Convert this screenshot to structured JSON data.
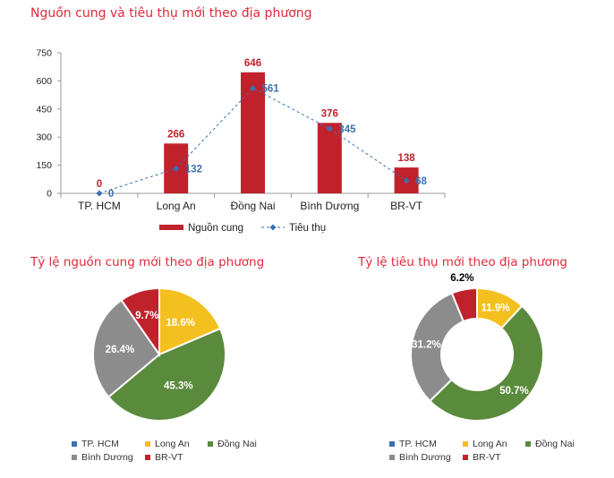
{
  "chart_data": [
    {
      "type": "bar",
      "title": "Nguồn cung và tiêu thụ mới theo địa phương",
      "categories": [
        "TP. HCM",
        "Long An",
        "Đồng Nai",
        "Bình Dương",
        "BR-VT"
      ],
      "ylim": [
        0,
        750
      ],
      "yticks": [
        0,
        150,
        300,
        450,
        600,
        750
      ],
      "grid": false,
      "legend_position": "bottom",
      "series": [
        {
          "name": "Nguồn cung",
          "type": "bar",
          "color": "#c0222c",
          "values": [
            0,
            266,
            646,
            376,
            138
          ]
        },
        {
          "name": "Tiêu thụ",
          "type": "line",
          "color": "#3a6fb0",
          "style": "dashed-diamond",
          "values": [
            0,
            132,
            561,
            345,
            68
          ]
        }
      ]
    },
    {
      "type": "pie",
      "title": "Tỷ lệ nguồn cung mới theo địa phương",
      "legend_position": "bottom",
      "slices": [
        {
          "label": "TP. HCM",
          "value": 0,
          "color": "#3a6fb0",
          "display": ""
        },
        {
          "label": "Long An",
          "value": 18.6,
          "color": "#f4c020",
          "display": "18.6%"
        },
        {
          "label": "Đồng Nai",
          "value": 45.3,
          "color": "#5a8a3c",
          "display": "45.3%"
        },
        {
          "label": "Bình Dương",
          "value": 26.4,
          "color": "#8c8c8c",
          "display": "26.4%"
        },
        {
          "label": "BR-VT",
          "value": 9.7,
          "color": "#c0222c",
          "display": "9.7%"
        }
      ]
    },
    {
      "type": "pie",
      "variant": "donut",
      "title": "Tỷ lệ tiêu thụ mới theo địa phương",
      "legend_position": "bottom",
      "slices": [
        {
          "label": "TP. HCM",
          "value": 0,
          "color": "#3a6fb0",
          "display": ""
        },
        {
          "label": "Long An",
          "value": 11.9,
          "color": "#f4c020",
          "display": "11.9%"
        },
        {
          "label": "Đồng Nai",
          "value": 50.7,
          "color": "#5a8a3c",
          "display": "50.7%"
        },
        {
          "label": "Bình Dương",
          "value": 31.2,
          "color": "#8c8c8c",
          "display": "31.2%"
        },
        {
          "label": "BR-VT",
          "value": 6.2,
          "color": "#c0222c",
          "display": "6.2%"
        }
      ]
    }
  ]
}
